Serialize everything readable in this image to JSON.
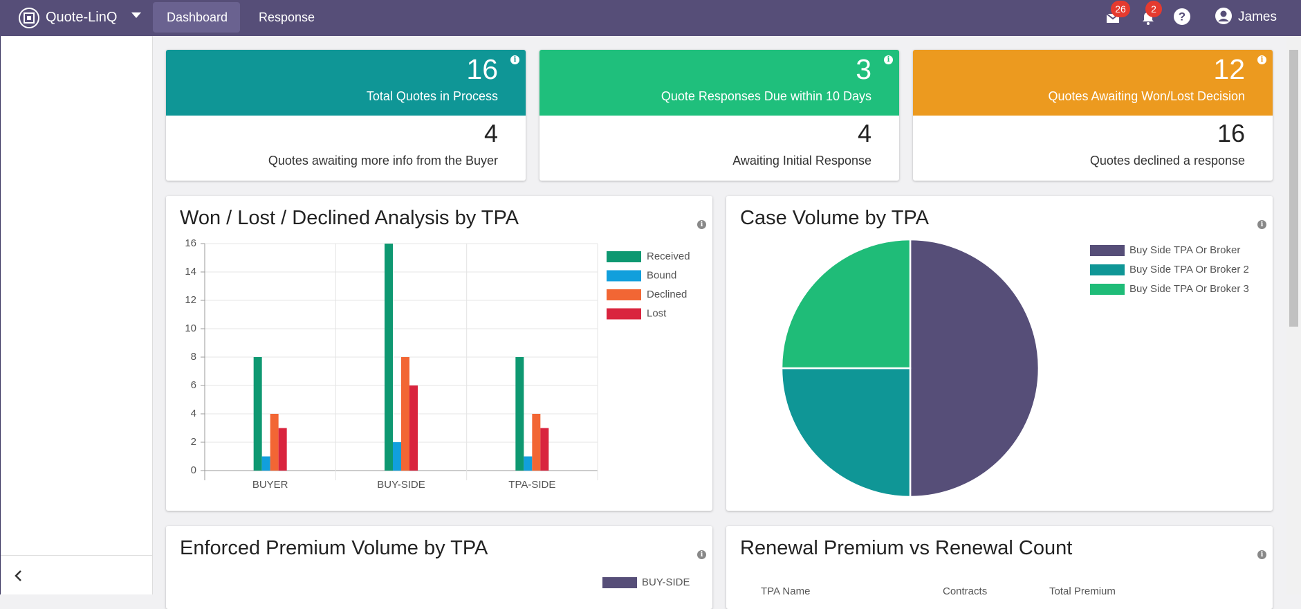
{
  "nav": {
    "brand": "Quote-LinQ",
    "tabs": [
      "Dashboard",
      "Response"
    ],
    "mail_badge": 26,
    "bell_badge": 2,
    "user": "James"
  },
  "cards": [
    {
      "value": 16,
      "label": "Total Quotes in Process",
      "color": "#0f9696",
      "sub_value": 4,
      "sub_label": "Quotes awaiting more info from the Buyer"
    },
    {
      "value": 3,
      "label": "Quote Responses Due within 10 Days",
      "color": "#1fbf7c",
      "sub_value": 4,
      "sub_label": "Awaiting Initial Response"
    },
    {
      "value": 12,
      "label": "Quotes Awaiting Won/Lost Decision",
      "color": "#ec9a1f",
      "sub_value": 16,
      "sub_label": "Quotes declined a response"
    }
  ],
  "chart_data": [
    {
      "type": "bar",
      "title": "Won / Lost / Declined Analysis by TPA",
      "categories": [
        "BUYER",
        "BUY-SIDE",
        "TPA-SIDE"
      ],
      "series": [
        {
          "name": "Received",
          "color": "#0e9871",
          "values": [
            8,
            16,
            8
          ]
        },
        {
          "name": "Bound",
          "color": "#119fdc",
          "values": [
            1,
            2,
            1
          ]
        },
        {
          "name": "Declined",
          "color": "#f26634",
          "values": [
            4,
            8,
            4
          ]
        },
        {
          "name": "Lost",
          "color": "#d9243e",
          "values": [
            3,
            6,
            3
          ]
        }
      ],
      "ylim": [
        0,
        16
      ],
      "yticks": [
        0,
        2,
        4,
        6,
        8,
        10,
        12,
        14,
        16
      ],
      "grid": true,
      "legend": "right"
    },
    {
      "type": "pie",
      "title": "Case Volume by TPA",
      "categories": [
        "Buy Side TPA Or Broker",
        "Buy Side TPA Or Broker 2",
        "Buy Side TPA Or Broker 3"
      ],
      "values": [
        50,
        25,
        25
      ],
      "colors": [
        "#564e78",
        "#0f9696",
        "#1fbc78"
      ],
      "legend": "right"
    }
  ],
  "panels": {
    "enforced": {
      "title": "Enforced Premium Volume by TPA",
      "legend": [
        {
          "name": "BUY-SIDE",
          "color": "#564e78"
        }
      ]
    },
    "renewal": {
      "title": "Renewal Premium vs Renewal Count",
      "columns": [
        "TPA Name",
        "Contracts",
        "Total Premium"
      ]
    }
  }
}
